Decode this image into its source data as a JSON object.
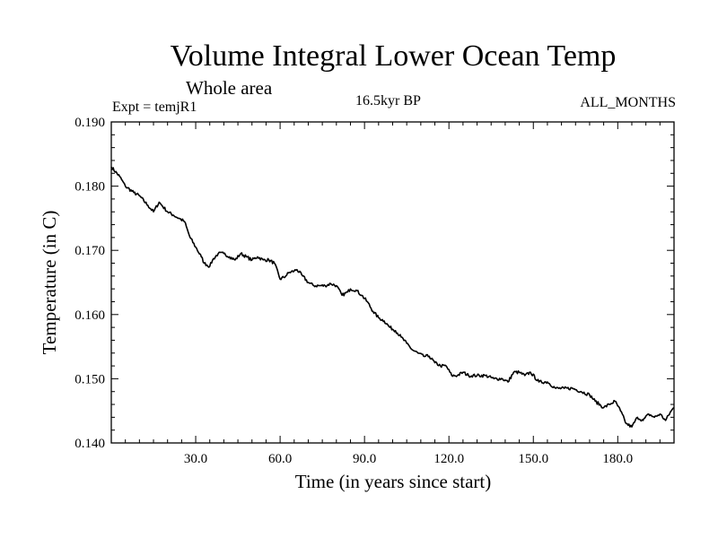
{
  "chart_data": {
    "type": "line",
    "title": "Volume Integral Lower Ocean Temp",
    "subtitle": "Whole area",
    "annotations": {
      "experiment": "Expt = temjR1",
      "period": "16.5kyr BP",
      "months": "ALL_MONTHS"
    },
    "xlabel": "Time (in years since start)",
    "ylabel": "Temperature (in C)",
    "xlim": [
      0,
      200
    ],
    "ylim": [
      0.14,
      0.19
    ],
    "xticks": [
      30,
      60,
      90,
      120,
      150,
      180
    ],
    "xtick_labels": [
      "30.0",
      "60.0",
      "90.0",
      "120.0",
      "150.0",
      "180.0"
    ],
    "yticks": [
      0.14,
      0.15,
      0.16,
      0.17,
      0.18,
      0.19
    ],
    "ytick_labels": [
      "0.140",
      "0.150",
      "0.160",
      "0.170",
      "0.180",
      "0.190"
    ],
    "grid": false,
    "series": [
      {
        "name": "temjR1",
        "x": [
          0,
          3,
          5,
          8,
          10,
          13,
          15,
          17,
          18,
          20,
          22,
          24,
          26,
          28,
          30,
          32,
          33,
          35,
          36,
          38,
          40,
          42,
          44,
          46,
          48,
          50,
          52,
          54,
          56,
          58,
          60,
          62,
          63,
          65,
          66,
          68,
          70,
          72,
          74,
          76,
          78,
          80,
          82,
          84,
          85,
          87,
          89,
          91,
          93,
          95,
          97,
          99,
          101,
          103,
          105,
          107,
          109,
          111,
          113,
          115,
          117,
          119,
          121,
          123,
          125,
          127,
          130,
          133,
          136,
          139,
          141,
          143,
          145,
          147,
          149,
          152,
          155,
          158,
          161,
          164,
          167,
          170,
          172,
          175,
          177,
          179,
          181,
          183,
          185,
          187,
          189,
          191,
          193,
          195,
          197,
          199,
          200
        ],
        "values": [
          0.183,
          0.1815,
          0.18,
          0.179,
          0.1785,
          0.177,
          0.176,
          0.1775,
          0.177,
          0.176,
          0.1755,
          0.175,
          0.1745,
          0.172,
          0.1705,
          0.169,
          0.168,
          0.1675,
          0.1685,
          0.1695,
          0.1695,
          0.169,
          0.1685,
          0.1695,
          0.169,
          0.1685,
          0.169,
          0.1685,
          0.1685,
          0.168,
          0.1655,
          0.166,
          0.1665,
          0.1668,
          0.167,
          0.166,
          0.165,
          0.1645,
          0.1645,
          0.1645,
          0.1648,
          0.1645,
          0.163,
          0.1635,
          0.164,
          0.1638,
          0.163,
          0.162,
          0.1605,
          0.1595,
          0.159,
          0.158,
          0.1575,
          0.1565,
          0.1555,
          0.1545,
          0.154,
          0.1535,
          0.1535,
          0.1525,
          0.152,
          0.152,
          0.1505,
          0.1505,
          0.151,
          0.1505,
          0.1505,
          0.1505,
          0.15,
          0.15,
          0.1495,
          0.151,
          0.151,
          0.1505,
          0.151,
          0.1495,
          0.1495,
          0.1485,
          0.1485,
          0.1485,
          0.148,
          0.1475,
          0.1465,
          0.1455,
          0.146,
          0.1465,
          0.145,
          0.143,
          0.1425,
          0.144,
          0.1435,
          0.1445,
          0.144,
          0.1445,
          0.1435,
          0.145,
          0.1455
        ]
      }
    ]
  }
}
